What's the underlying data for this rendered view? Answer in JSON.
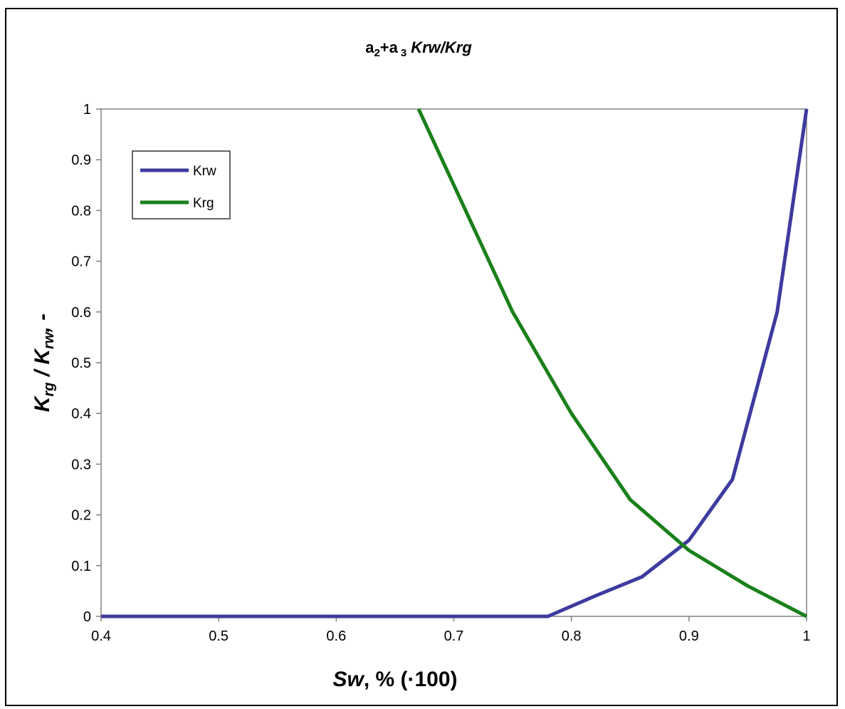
{
  "chart_data": {
    "type": "line",
    "title": {
      "main": "a",
      "sub2": "2",
      "plus": "+a",
      "sub3": "3",
      "italic": "Krw/Krg"
    },
    "xlabel": "Sw, % (·100)",
    "xlabel_parts": {
      "italic": "Sw",
      "rest": ", % (·100)"
    },
    "ylabel_parts": {
      "k1": "K",
      "sub1": "rg",
      "sep": " / ",
      "k2": "K",
      "sub2": "rw",
      "rest": ", -"
    },
    "xlim": [
      0.4,
      1.0
    ],
    "ylim": [
      0,
      1
    ],
    "x_ticks": [
      "0.4",
      "0.5",
      "0.6",
      "0.7",
      "0.8",
      "0.9",
      "1"
    ],
    "y_ticks": [
      "0",
      "0.1",
      "0.2",
      "0.3",
      "0.4",
      "0.5",
      "0.6",
      "0.7",
      "0.8",
      "0.9",
      "1"
    ],
    "grid": false,
    "legend_position": "top-left",
    "series": [
      {
        "name": "Krw",
        "color": "#3d3b9e",
        "x": [
          0.4,
          0.78,
          0.82,
          0.86,
          0.9,
          0.937,
          0.975,
          1.0
        ],
        "y": [
          0,
          0,
          0.04,
          0.078,
          0.15,
          0.27,
          0.6,
          1.0
        ]
      },
      {
        "name": "Krg",
        "color": "#1a801a",
        "x": [
          0.67,
          0.75,
          0.8,
          0.85,
          0.9,
          0.95,
          1.0
        ],
        "y": [
          1.0,
          0.6,
          0.4,
          0.23,
          0.13,
          0.06,
          0.0
        ]
      }
    ]
  }
}
